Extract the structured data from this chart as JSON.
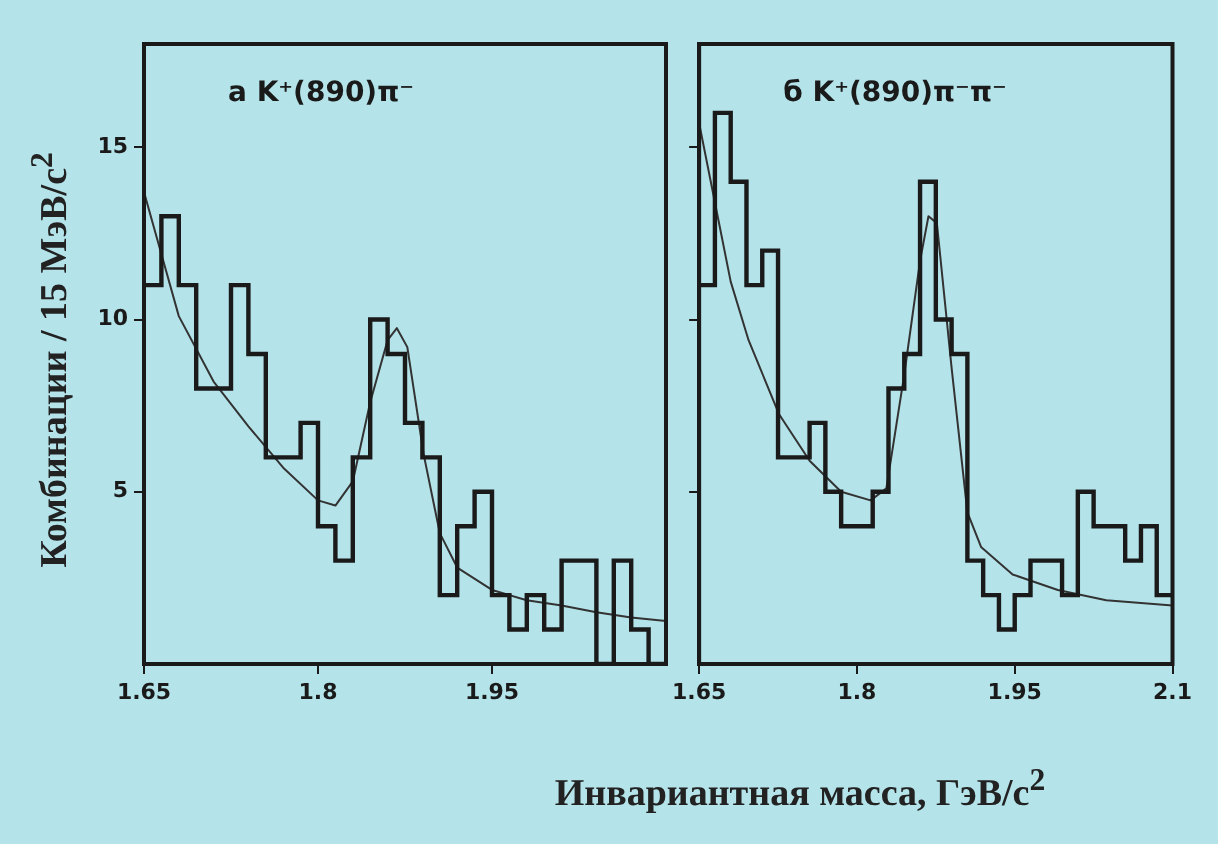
{
  "chart_data": [
    {
      "type": "histogram",
      "bins": [
        1.65,
        1.665,
        1.68,
        1.695,
        1.71,
        1.725,
        1.74,
        1.755,
        1.77,
        1.785,
        1.8,
        1.815,
        1.83,
        1.845,
        1.86,
        1.875,
        1.89,
        1.905,
        1.92,
        1.935,
        1.95,
        1.965,
        1.98,
        1.995,
        2.01,
        2.025,
        2.04,
        2.055,
        2.07,
        2.085,
        2.1
      ],
      "values": [
        11,
        13,
        11,
        8,
        8,
        11,
        9,
        6,
        6,
        7,
        4,
        3,
        6,
        10,
        9,
        7,
        6,
        2,
        4,
        5,
        2,
        1,
        2,
        1,
        3,
        3,
        0,
        3,
        1,
        0
      ],
      "color": "#1a1a1a",
      "series": [
        {
          "type": "line",
          "x": [
            1.65,
            1.68,
            1.71,
            1.74,
            1.77,
            1.8,
            1.815,
            1.83,
            1.845,
            1.86,
            1.868,
            1.877,
            1.891,
            1.905,
            1.92,
            1.95,
            1.98,
            2.01,
            2.04,
            2.07,
            2.1
          ],
          "values": [
            13.7,
            10.1,
            8.2,
            6.9,
            5.7,
            4.75,
            4.6,
            5.3,
            7.6,
            9.4,
            9.75,
            9.2,
            6.1,
            3.8,
            2.8,
            2.15,
            1.85,
            1.7,
            1.5,
            1.35,
            1.25
          ],
          "color": "#333333"
        }
      ],
      "xlim": [
        1.65,
        2.1
      ],
      "ylim": [
        0,
        18
      ],
      "xticks": [
        1.65,
        1.8,
        1.95
      ],
      "yticks": [
        5,
        10,
        15
      ],
      "ylabel": "Комбинации / 15 МэВ/c$^{2}$",
      "annotations": [
        "а K⁺(890)π⁻"
      ]
    },
    {
      "type": "histogram",
      "bins": [
        1.65,
        1.665,
        1.68,
        1.695,
        1.71,
        1.725,
        1.74,
        1.755,
        1.77,
        1.785,
        1.8,
        1.815,
        1.83,
        1.845,
        1.86,
        1.875,
        1.89,
        1.905,
        1.92,
        1.935,
        1.95,
        1.965,
        1.98,
        1.995,
        2.01,
        2.025,
        2.04,
        2.055,
        2.07,
        2.085,
        2.1
      ],
      "values": [
        11,
        16,
        14,
        11,
        12,
        6,
        6,
        7,
        5,
        4,
        4,
        5,
        8,
        9,
        14,
        10,
        9,
        3,
        2,
        1,
        2,
        3,
        3,
        2,
        5,
        4,
        4,
        3,
        4,
        2
      ],
      "color": "#1a1a1a",
      "series": [
        {
          "type": "line",
          "x": [
            1.65,
            1.665,
            1.68,
            1.697,
            1.726,
            1.755,
            1.785,
            1.813,
            1.828,
            1.845,
            1.86,
            1.868,
            1.876,
            1.89,
            1.905,
            1.918,
            1.948,
            1.991,
            2.037,
            2.1
          ],
          "values": [
            15.7,
            13.4,
            11.1,
            9.4,
            7.25,
            5.9,
            5.0,
            4.75,
            5.1,
            8.4,
            11.7,
            13.0,
            12.8,
            8.6,
            4.4,
            3.4,
            2.6,
            2.15,
            1.85,
            1.7
          ],
          "color": "#333333"
        }
      ],
      "xlim": [
        1.65,
        2.1
      ],
      "ylim": [
        0,
        18
      ],
      "xticks": [
        1.65,
        1.8,
        1.95,
        2.1
      ],
      "yticks": [
        5,
        10,
        15
      ],
      "tick_labels": "x",
      "xlabel": "Инвариантная масса, ГэВ/с$^{2}$",
      "annotations": [
        "б K⁺(890)π⁻π⁻"
      ]
    }
  ]
}
